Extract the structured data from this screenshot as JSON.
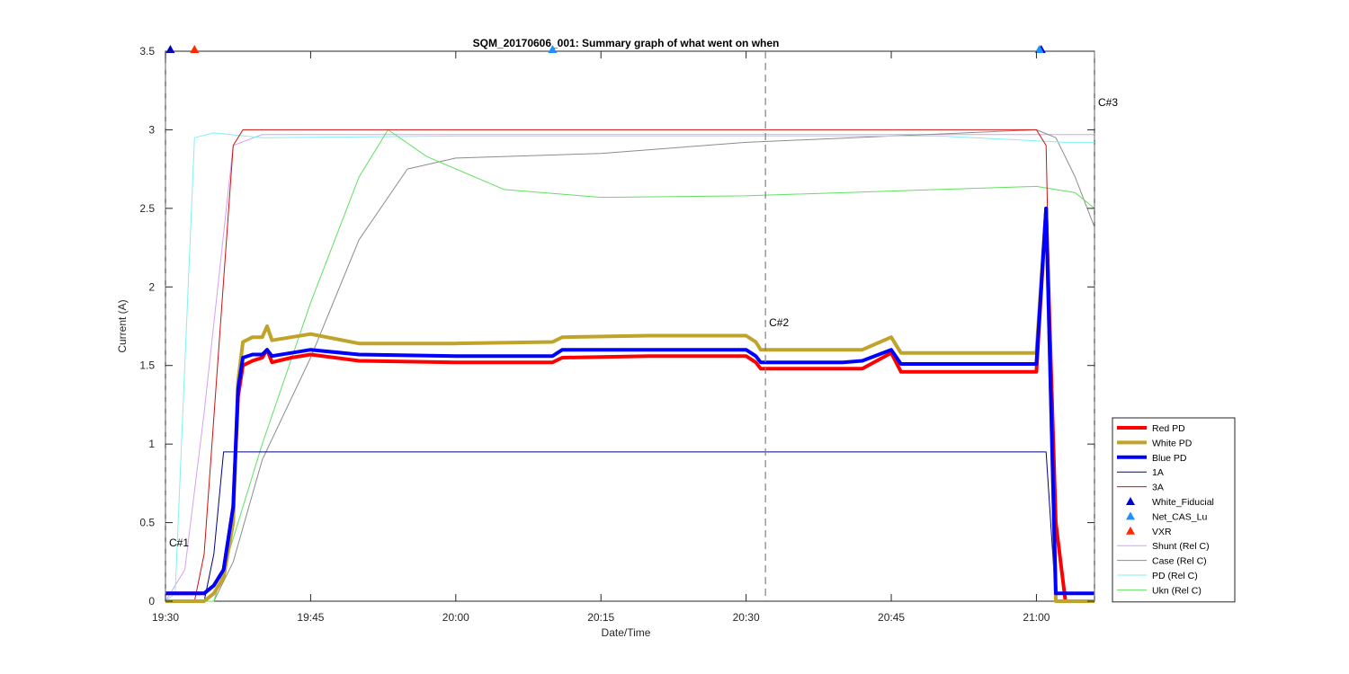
{
  "chart_data": {
    "type": "line",
    "title": "SQM_20170606_001: Summary graph of what went on when",
    "xlabel": "Date/Time",
    "ylabel": "Current (A)",
    "xlim": [
      "19:30",
      "21:06"
    ],
    "ylim": [
      0,
      3.5
    ],
    "x_ticks": [
      "19:30",
      "19:45",
      "20:00",
      "20:15",
      "20:30",
      "20:45",
      "21:00"
    ],
    "y_ticks": [
      "0",
      "0.5",
      "1",
      "1.5",
      "2",
      "2.5",
      "3",
      "3.5"
    ],
    "grid": false,
    "legend_position": "bottom-right, outside",
    "annotations": [
      {
        "label": "C#1",
        "x": "19:30",
        "y": 0.35
      },
      {
        "label": "C#2",
        "x": "20:32",
        "y": 1.75
      },
      {
        "label": "C#3",
        "x": "21:06",
        "y": 3.15
      }
    ],
    "series": [
      {
        "name": "Red PD",
        "color": "#ff0000",
        "width": 4,
        "x": [
          "19:30",
          "19:34",
          "19:35",
          "19:36",
          "19:37",
          "19:37.5",
          "19:38",
          "19:39",
          "19:40",
          "19:40.5",
          "19:41",
          "19:43",
          "19:45",
          "19:50",
          "20:00",
          "20:10",
          "20:11",
          "20:20",
          "20:30",
          "20:31",
          "20:31.5",
          "20:40",
          "20:42",
          "20:45",
          "20:46",
          "20:50",
          "21:00",
          "21:01",
          "21:02",
          "21:03",
          "21:06"
        ],
        "y": [
          0.05,
          0.05,
          0.1,
          0.2,
          0.6,
          1.3,
          1.5,
          1.53,
          1.55,
          1.6,
          1.52,
          1.55,
          1.57,
          1.53,
          1.52,
          1.52,
          1.55,
          1.56,
          1.56,
          1.52,
          1.48,
          1.48,
          1.48,
          1.58,
          1.46,
          1.46,
          1.46,
          2.5,
          0.5,
          0.0,
          0.0
        ]
      },
      {
        "name": "White PD",
        "color": "#bfa32a",
        "width": 4,
        "x": [
          "19:30",
          "19:34",
          "19:35",
          "19:36",
          "19:37",
          "19:37.5",
          "19:38",
          "19:39",
          "19:40",
          "19:40.5",
          "19:41",
          "19:43",
          "19:45",
          "19:50",
          "20:00",
          "20:10",
          "20:11",
          "20:20",
          "20:30",
          "20:31",
          "20:31.5",
          "20:40",
          "20:42",
          "20:45",
          "20:46",
          "20:50",
          "21:00",
          "21:01",
          "21:02",
          "21:03",
          "21:06"
        ],
        "y": [
          0.0,
          0.0,
          0.05,
          0.15,
          0.5,
          1.4,
          1.65,
          1.68,
          1.68,
          1.75,
          1.66,
          1.68,
          1.7,
          1.64,
          1.64,
          1.65,
          1.68,
          1.69,
          1.69,
          1.65,
          1.6,
          1.6,
          1.6,
          1.68,
          1.58,
          1.58,
          1.58,
          2.5,
          0.0,
          0.0,
          0.0
        ]
      },
      {
        "name": "Blue PD",
        "color": "#0000ff",
        "width": 4,
        "x": [
          "19:30",
          "19:34",
          "19:35",
          "19:36",
          "19:37",
          "19:37.5",
          "19:38",
          "19:39",
          "19:40",
          "19:40.5",
          "19:41",
          "19:43",
          "19:45",
          "19:50",
          "20:00",
          "20:10",
          "20:11",
          "20:20",
          "20:30",
          "20:31",
          "20:31.5",
          "20:40",
          "20:42",
          "20:45",
          "20:46",
          "20:50",
          "21:00",
          "21:01",
          "21:02",
          "21:03",
          "21:06"
        ],
        "y": [
          0.05,
          0.05,
          0.1,
          0.2,
          0.6,
          1.35,
          1.55,
          1.57,
          1.57,
          1.6,
          1.56,
          1.58,
          1.6,
          1.57,
          1.56,
          1.56,
          1.6,
          1.6,
          1.6,
          1.56,
          1.52,
          1.52,
          1.53,
          1.6,
          1.51,
          1.51,
          1.51,
          2.5,
          0.05,
          0.05,
          0.05
        ]
      },
      {
        "name": "1A",
        "color": "#00008b",
        "width": 1,
        "x": [
          "19:30",
          "19:34",
          "19:35",
          "19:36",
          "21:00",
          "21:01",
          "21:02",
          "21:06"
        ],
        "y": [
          0.0,
          0.0,
          0.3,
          0.95,
          0.95,
          0.95,
          0.0,
          0.0
        ]
      },
      {
        "name": "3A",
        "color": "#d01010",
        "width": 1,
        "x": [
          "19:30",
          "19:33",
          "19:34",
          "19:37",
          "19:38",
          "21:00",
          "21:01",
          "21:02",
          "21:06"
        ],
        "y": [
          0.0,
          0.0,
          0.3,
          2.9,
          3.0,
          3.0,
          2.9,
          0.0,
          0.0
        ]
      },
      {
        "name": "White_Fiducial",
        "color": "#0000cd",
        "marker": "triangle-up",
        "x": [
          "19:30.5",
          "21:00.5"
        ],
        "y": [
          3.5,
          3.5
        ]
      },
      {
        "name": "Net_CAS_Lu",
        "color": "#1e90ff",
        "marker": "triangle-up",
        "x": [
          "20:10",
          "21:00.3"
        ],
        "y": [
          3.5,
          3.5
        ]
      },
      {
        "name": "VXR",
        "color": "#ff2a00",
        "marker": "triangle-up",
        "x": [
          "19:33"
        ],
        "y": [
          3.5
        ]
      },
      {
        "name": "Shunt (Rel C)",
        "color": "#d6a0f0",
        "width": 1,
        "x": [
          "19:30",
          "19:32",
          "19:34",
          "19:37",
          "19:40",
          "20:00",
          "20:30",
          "21:00",
          "21:06"
        ],
        "y": [
          0.0,
          0.2,
          1.2,
          2.9,
          2.97,
          2.97,
          2.97,
          2.97,
          2.97
        ]
      },
      {
        "name": "Case (Rel C)",
        "color": "#8c8c8c",
        "width": 1,
        "x": [
          "19:30",
          "19:35",
          "19:37",
          "19:40",
          "19:45",
          "19:50",
          "19:55",
          "20:00",
          "20:15",
          "20:30",
          "20:45",
          "21:00",
          "21:02",
          "21:04",
          "21:06"
        ],
        "y": [
          0.0,
          0.0,
          0.25,
          0.9,
          1.55,
          2.3,
          2.75,
          2.82,
          2.85,
          2.92,
          2.96,
          3.0,
          2.95,
          2.7,
          2.38
        ]
      },
      {
        "name": "PD (Rel C)",
        "color": "#80f0f0",
        "width": 1,
        "x": [
          "19:30",
          "19:31",
          "19:32",
          "19:33",
          "19:35",
          "19:40",
          "20:00",
          "20:30",
          "20:45",
          "20:50",
          "21:00",
          "21:03",
          "21:06"
        ],
        "y": [
          0.0,
          0.05,
          1.5,
          2.95,
          2.98,
          2.95,
          2.96,
          2.96,
          2.96,
          2.96,
          2.93,
          2.92,
          2.92
        ]
      },
      {
        "name": "Ukn (Rel C)",
        "color": "#60e060",
        "width": 1,
        "x": [
          "19:30",
          "19:35",
          "19:40",
          "19:45",
          "19:50",
          "19:53",
          "19:57",
          "20:05",
          "20:15",
          "20:30",
          "20:45",
          "21:00",
          "21:04",
          "21:06"
        ],
        "y": [
          0.0,
          0.0,
          1.0,
          1.9,
          2.7,
          3.0,
          2.83,
          2.62,
          2.57,
          2.58,
          2.61,
          2.64,
          2.6,
          2.5
        ]
      }
    ]
  }
}
